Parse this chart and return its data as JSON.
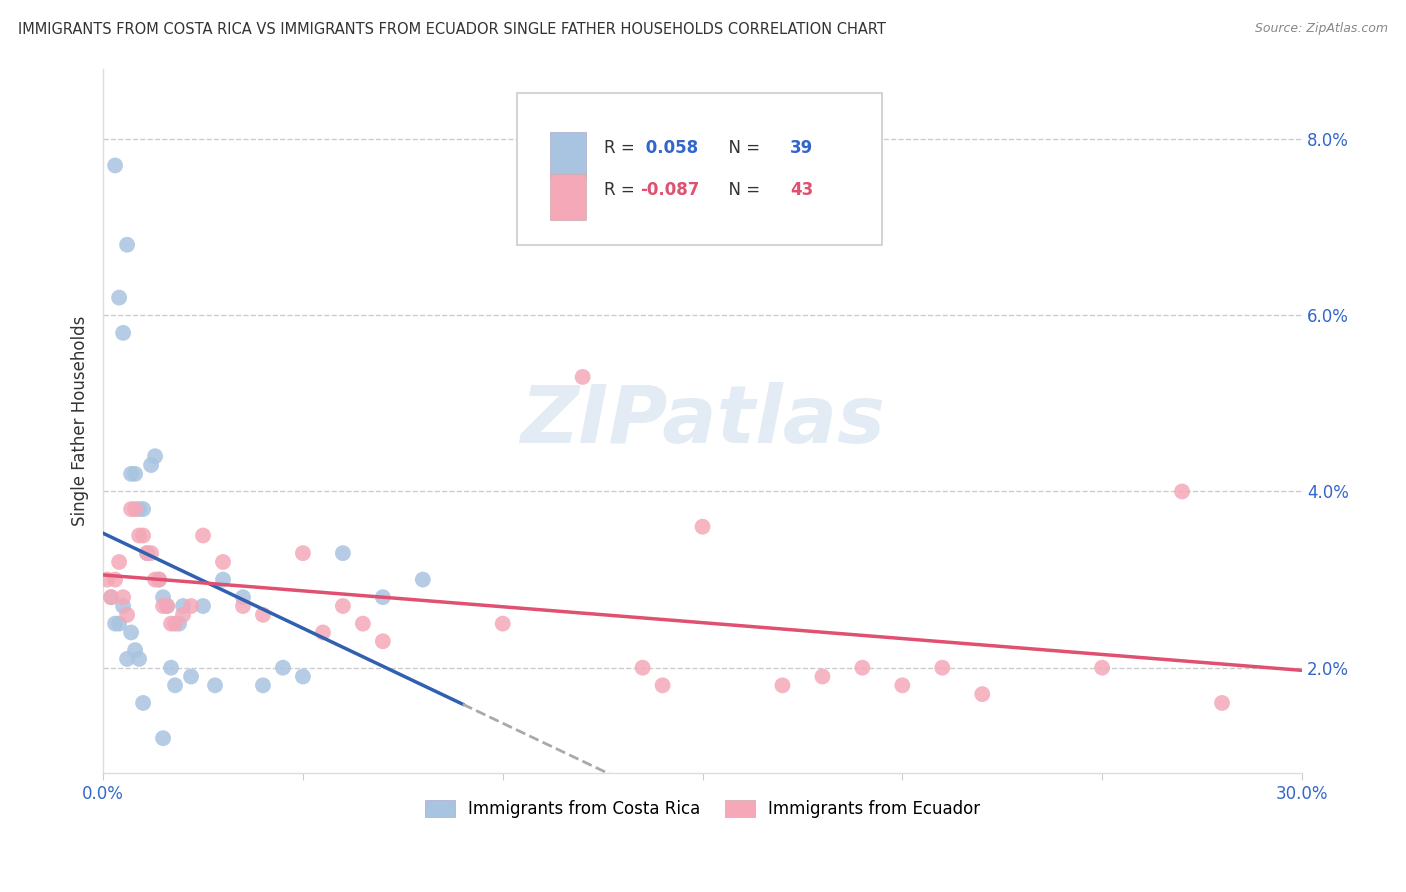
{
  "title": "IMMIGRANTS FROM COSTA RICA VS IMMIGRANTS FROM ECUADOR SINGLE FATHER HOUSEHOLDS CORRELATION CHART",
  "source": "Source: ZipAtlas.com",
  "ylabel": "Single Father Households",
  "legend_label1": "Immigrants from Costa Rica",
  "legend_label2": "Immigrants from Ecuador",
  "r1": 0.058,
  "n1": 39,
  "r2": -0.087,
  "n2": 43,
  "color1": "#a8c4e0",
  "color2": "#f4a8b8",
  "trendline1_color": "#3060b0",
  "trendline2_color": "#e05070",
  "trendline1_dash_color": "#aaaaaa",
  "xlim": [
    0.0,
    0.3
  ],
  "ylim": [
    0.008,
    0.088
  ],
  "xtick_vals": [
    0.0,
    0.05,
    0.1,
    0.15,
    0.2,
    0.25,
    0.3
  ],
  "ytick_vals": [
    0.02,
    0.04,
    0.06,
    0.08
  ],
  "ytick_labels": [
    "2.0%",
    "4.0%",
    "6.0%",
    "8.0%"
  ],
  "watermark": "ZIPatlas",
  "cr_x": [
    0.002,
    0.003,
    0.004,
    0.005,
    0.006,
    0.007,
    0.008,
    0.009,
    0.01,
    0.011,
    0.012,
    0.013,
    0.014,
    0.015,
    0.016,
    0.017,
    0.018,
    0.019,
    0.02,
    0.022,
    0.025,
    0.028,
    0.03,
    0.035,
    0.04,
    0.045,
    0.05,
    0.06,
    0.07,
    0.08,
    0.003,
    0.004,
    0.005,
    0.006,
    0.007,
    0.008,
    0.009,
    0.01,
    0.015
  ],
  "cr_y": [
    0.028,
    0.025,
    0.025,
    0.027,
    0.021,
    0.042,
    0.042,
    0.038,
    0.038,
    0.033,
    0.043,
    0.044,
    0.03,
    0.028,
    0.027,
    0.02,
    0.018,
    0.025,
    0.027,
    0.019,
    0.027,
    0.018,
    0.03,
    0.028,
    0.018,
    0.02,
    0.019,
    0.033,
    0.028,
    0.03,
    0.077,
    0.062,
    0.058,
    0.068,
    0.024,
    0.022,
    0.021,
    0.016,
    0.012
  ],
  "eq_x": [
    0.001,
    0.002,
    0.003,
    0.004,
    0.005,
    0.006,
    0.007,
    0.008,
    0.009,
    0.01,
    0.011,
    0.012,
    0.013,
    0.014,
    0.015,
    0.016,
    0.017,
    0.018,
    0.02,
    0.022,
    0.025,
    0.03,
    0.035,
    0.04,
    0.05,
    0.055,
    0.06,
    0.065,
    0.07,
    0.1,
    0.12,
    0.15,
    0.17,
    0.19,
    0.2,
    0.22,
    0.25,
    0.27,
    0.135,
    0.14,
    0.18,
    0.21,
    0.28
  ],
  "eq_y": [
    0.03,
    0.028,
    0.03,
    0.032,
    0.028,
    0.026,
    0.038,
    0.038,
    0.035,
    0.035,
    0.033,
    0.033,
    0.03,
    0.03,
    0.027,
    0.027,
    0.025,
    0.025,
    0.026,
    0.027,
    0.035,
    0.032,
    0.027,
    0.026,
    0.033,
    0.024,
    0.027,
    0.025,
    0.023,
    0.025,
    0.053,
    0.036,
    0.018,
    0.02,
    0.018,
    0.017,
    0.02,
    0.04,
    0.02,
    0.018,
    0.019,
    0.02,
    0.016
  ]
}
